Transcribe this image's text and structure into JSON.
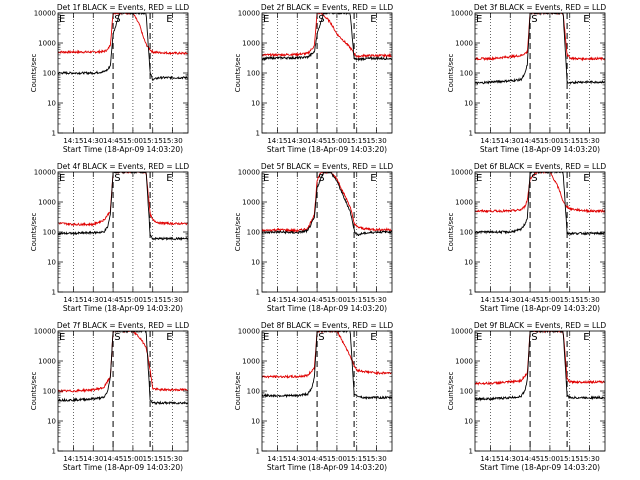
{
  "colors": {
    "events": "#000000",
    "lld": "#e00000",
    "background": "#ffffff",
    "axes": "#000000"
  },
  "shared": {
    "xlabel": "Start Time (18-Apr-09 14:03:20)",
    "ylabel": "Counts/sec",
    "x_tick_labels": [
      "14:15",
      "14:30",
      "14:45",
      "15:00",
      "15:15",
      "15:30"
    ],
    "y_tick_labels": [
      "1",
      "10",
      "100",
      "1000",
      "10000"
    ],
    "markers": [
      "E",
      "S",
      "E"
    ],
    "y_scale": "log",
    "ylim": [
      1,
      10000
    ],
    "xlim": [
      "14:03:20",
      "15:41:40"
    ]
  },
  "chart_data": [
    {
      "type": "line",
      "title": "Det 1f BLACK = Events, RED = LLD",
      "series": [
        {
          "name": "Events",
          "x": [
            "14:03",
            "14:15",
            "14:30",
            "14:38",
            "14:41",
            "14:43",
            "14:45",
            "14:50",
            "15:00",
            "15:05",
            "15:10",
            "15:13",
            "15:15",
            "15:20",
            "15:30",
            "15:41"
          ],
          "values": [
            100,
            100,
            100,
            110,
            130,
            180,
            2000,
            10000,
            10000,
            10000,
            10000,
            100,
            60,
            70,
            70,
            70
          ]
        },
        {
          "name": "LLD",
          "x": [
            "14:03",
            "14:15",
            "14:30",
            "14:38",
            "14:41",
            "14:43",
            "14:45",
            "14:50",
            "15:00",
            "15:05",
            "15:08",
            "15:10",
            "15:13",
            "15:15",
            "15:20",
            "15:30",
            "15:41"
          ],
          "values": [
            500,
            500,
            500,
            520,
            600,
            900,
            10000,
            10000,
            10000,
            4000,
            1500,
            900,
            600,
            500,
            480,
            460,
            450
          ]
        }
      ]
    },
    {
      "type": "line",
      "title": "Det 2f BLACK = Events, RED = LLD",
      "series": [
        {
          "name": "Events",
          "x": [
            "14:03",
            "14:15",
            "14:30",
            "14:38",
            "14:43",
            "14:45",
            "14:50",
            "15:00",
            "15:05",
            "15:10",
            "15:13",
            "15:15",
            "15:20",
            "15:30",
            "15:41"
          ],
          "values": [
            300,
            320,
            320,
            340,
            500,
            2000,
            10000,
            10000,
            10000,
            10000,
            300,
            280,
            300,
            310,
            300
          ]
        },
        {
          "name": "LLD",
          "x": [
            "14:03",
            "14:15",
            "14:30",
            "14:38",
            "14:43",
            "14:45",
            "14:48",
            "14:55",
            "15:00",
            "15:05",
            "15:10",
            "15:13",
            "15:15",
            "15:20",
            "15:30",
            "15:41"
          ],
          "values": [
            400,
            400,
            420,
            450,
            800,
            10000,
            10000,
            5000,
            2000,
            1200,
            700,
            450,
            350,
            380,
            380,
            380
          ]
        }
      ]
    },
    {
      "type": "line",
      "title": "Det 3f BLACK = Events, RED = LLD",
      "series": [
        {
          "name": "Events",
          "x": [
            "14:03",
            "14:15",
            "14:30",
            "14:38",
            "14:41",
            "14:43",
            "14:45",
            "15:00",
            "15:10",
            "15:13",
            "15:15",
            "15:20",
            "15:30",
            "15:41"
          ],
          "values": [
            45,
            50,
            55,
            60,
            90,
            200,
            10000,
            10000,
            10000,
            50,
            45,
            50,
            50,
            50
          ]
        },
        {
          "name": "LLD",
          "x": [
            "14:03",
            "14:15",
            "14:30",
            "14:38",
            "14:43",
            "14:45",
            "15:00",
            "15:10",
            "15:13",
            "15:15",
            "15:20",
            "15:30",
            "15:41"
          ],
          "values": [
            300,
            300,
            350,
            380,
            500,
            10000,
            10000,
            10000,
            400,
            320,
            300,
            300,
            300
          ]
        }
      ]
    },
    {
      "type": "line",
      "title": "Det 4f BLACK = Events, RED = LLD",
      "series": [
        {
          "name": "Events",
          "x": [
            "14:03",
            "14:15",
            "14:30",
            "14:38",
            "14:41",
            "14:43",
            "14:45",
            "15:00",
            "15:10",
            "15:13",
            "15:15",
            "15:20",
            "15:30",
            "15:41"
          ],
          "values": [
            90,
            90,
            95,
            100,
            150,
            400,
            10000,
            10000,
            10000,
            80,
            60,
            60,
            60,
            60
          ]
        },
        {
          "name": "LLD",
          "x": [
            "14:03",
            "14:15",
            "14:30",
            "14:38",
            "14:43",
            "14:45",
            "15:00",
            "15:10",
            "15:13",
            "15:15",
            "15:20",
            "15:30",
            "15:41"
          ],
          "values": [
            200,
            180,
            180,
            250,
            500,
            10000,
            10000,
            10000,
            400,
            250,
            200,
            190,
            190
          ]
        }
      ]
    },
    {
      "type": "line",
      "title": "Det 5f BLACK = Events, RED = LLD",
      "series": [
        {
          "name": "Events",
          "x": [
            "14:03",
            "14:15",
            "14:30",
            "14:38",
            "14:43",
            "14:45",
            "14:50",
            "14:55",
            "15:00",
            "15:05",
            "15:10",
            "15:13",
            "15:15",
            "15:20",
            "15:30",
            "15:41"
          ],
          "values": [
            95,
            100,
            95,
            110,
            300,
            3000,
            10000,
            10000,
            5000,
            1500,
            500,
            120,
            80,
            90,
            100,
            100
          ]
        },
        {
          "name": "LLD",
          "x": [
            "14:03",
            "14:15",
            "14:30",
            "14:38",
            "14:43",
            "14:45",
            "14:48",
            "14:55",
            "15:00",
            "15:05",
            "15:10",
            "15:13",
            "15:15",
            "15:20",
            "15:30",
            "15:41"
          ],
          "values": [
            110,
            120,
            110,
            130,
            400,
            5000,
            10000,
            10000,
            6000,
            2000,
            700,
            200,
            150,
            130,
            120,
            120
          ]
        }
      ]
    },
    {
      "type": "line",
      "title": "Det 6f BLACK = Events, RED = LLD",
      "series": [
        {
          "name": "Events",
          "x": [
            "14:03",
            "14:15",
            "14:30",
            "14:38",
            "14:41",
            "14:43",
            "14:45",
            "15:00",
            "15:10",
            "15:13",
            "15:15",
            "15:20",
            "15:30",
            "15:41"
          ],
          "values": [
            100,
            100,
            100,
            120,
            180,
            300,
            10000,
            10000,
            10000,
            90,
            90,
            90,
            90,
            90
          ]
        },
        {
          "name": "LLD",
          "x": [
            "14:03",
            "14:15",
            "14:30",
            "14:38",
            "14:41",
            "14:43",
            "14:45",
            "14:50",
            "15:00",
            "15:05",
            "15:08",
            "15:10",
            "15:13",
            "15:15",
            "15:20",
            "15:30",
            "15:41"
          ],
          "values": [
            500,
            500,
            500,
            550,
            700,
            1200,
            6000,
            10000,
            10000,
            4000,
            2000,
            1000,
            700,
            600,
            550,
            500,
            500
          ]
        }
      ]
    },
    {
      "type": "line",
      "title": "Det 7f BLACK = Events, RED = LLD",
      "series": [
        {
          "name": "Events",
          "x": [
            "14:03",
            "14:15",
            "14:30",
            "14:38",
            "14:41",
            "14:43",
            "14:45",
            "15:00",
            "15:10",
            "15:13",
            "15:15",
            "15:20",
            "15:30",
            "15:41"
          ],
          "values": [
            50,
            50,
            55,
            60,
            100,
            300,
            10000,
            10000,
            10000,
            50,
            40,
            40,
            40,
            40
          ]
        },
        {
          "name": "LLD",
          "x": [
            "14:03",
            "14:15",
            "14:30",
            "14:38",
            "14:43",
            "14:45",
            "15:00",
            "15:05",
            "15:10",
            "15:13",
            "15:15",
            "15:20",
            "15:30",
            "15:41"
          ],
          "values": [
            100,
            100,
            110,
            130,
            300,
            10000,
            10000,
            6000,
            3000,
            500,
            120,
            110,
            110,
            110
          ]
        }
      ]
    },
    {
      "type": "line",
      "title": "Det 8f BLACK = Events, RED = LLD",
      "series": [
        {
          "name": "Events",
          "x": [
            "14:03",
            "14:15",
            "14:30",
            "14:38",
            "14:41",
            "14:43",
            "14:45",
            "15:00",
            "15:10",
            "15:13",
            "15:15",
            "15:20",
            "15:30",
            "15:41"
          ],
          "values": [
            70,
            70,
            70,
            80,
            120,
            300,
            10000,
            10000,
            10000,
            80,
            70,
            60,
            60,
            60
          ]
        },
        {
          "name": "LLD",
          "x": [
            "14:03",
            "14:15",
            "14:30",
            "14:38",
            "14:43",
            "14:45",
            "14:50",
            "15:00",
            "15:05",
            "15:10",
            "15:13",
            "15:15",
            "15:20",
            "15:30",
            "15:41"
          ],
          "values": [
            300,
            300,
            300,
            330,
            600,
            10000,
            10000,
            10000,
            4000,
            1500,
            700,
            500,
            450,
            400,
            400
          ]
        }
      ]
    },
    {
      "type": "line",
      "title": "Det 9f BLACK = Events, RED = LLD",
      "series": [
        {
          "name": "Events",
          "x": [
            "14:03",
            "14:15",
            "14:30",
            "14:38",
            "14:41",
            "14:43",
            "14:45",
            "15:00",
            "15:10",
            "15:13",
            "15:15",
            "15:20",
            "15:30",
            "15:41"
          ],
          "values": [
            55,
            55,
            60,
            65,
            100,
            250,
            10000,
            10000,
            10000,
            70,
            60,
            60,
            60,
            60
          ]
        },
        {
          "name": "LLD",
          "x": [
            "14:03",
            "14:15",
            "14:30",
            "14:38",
            "14:43",
            "14:45",
            "15:00",
            "15:10",
            "15:13",
            "15:15",
            "15:20",
            "15:30",
            "15:41"
          ],
          "values": [
            180,
            180,
            200,
            220,
            400,
            10000,
            10000,
            10000,
            250,
            200,
            200,
            200,
            200
          ]
        }
      ]
    }
  ]
}
